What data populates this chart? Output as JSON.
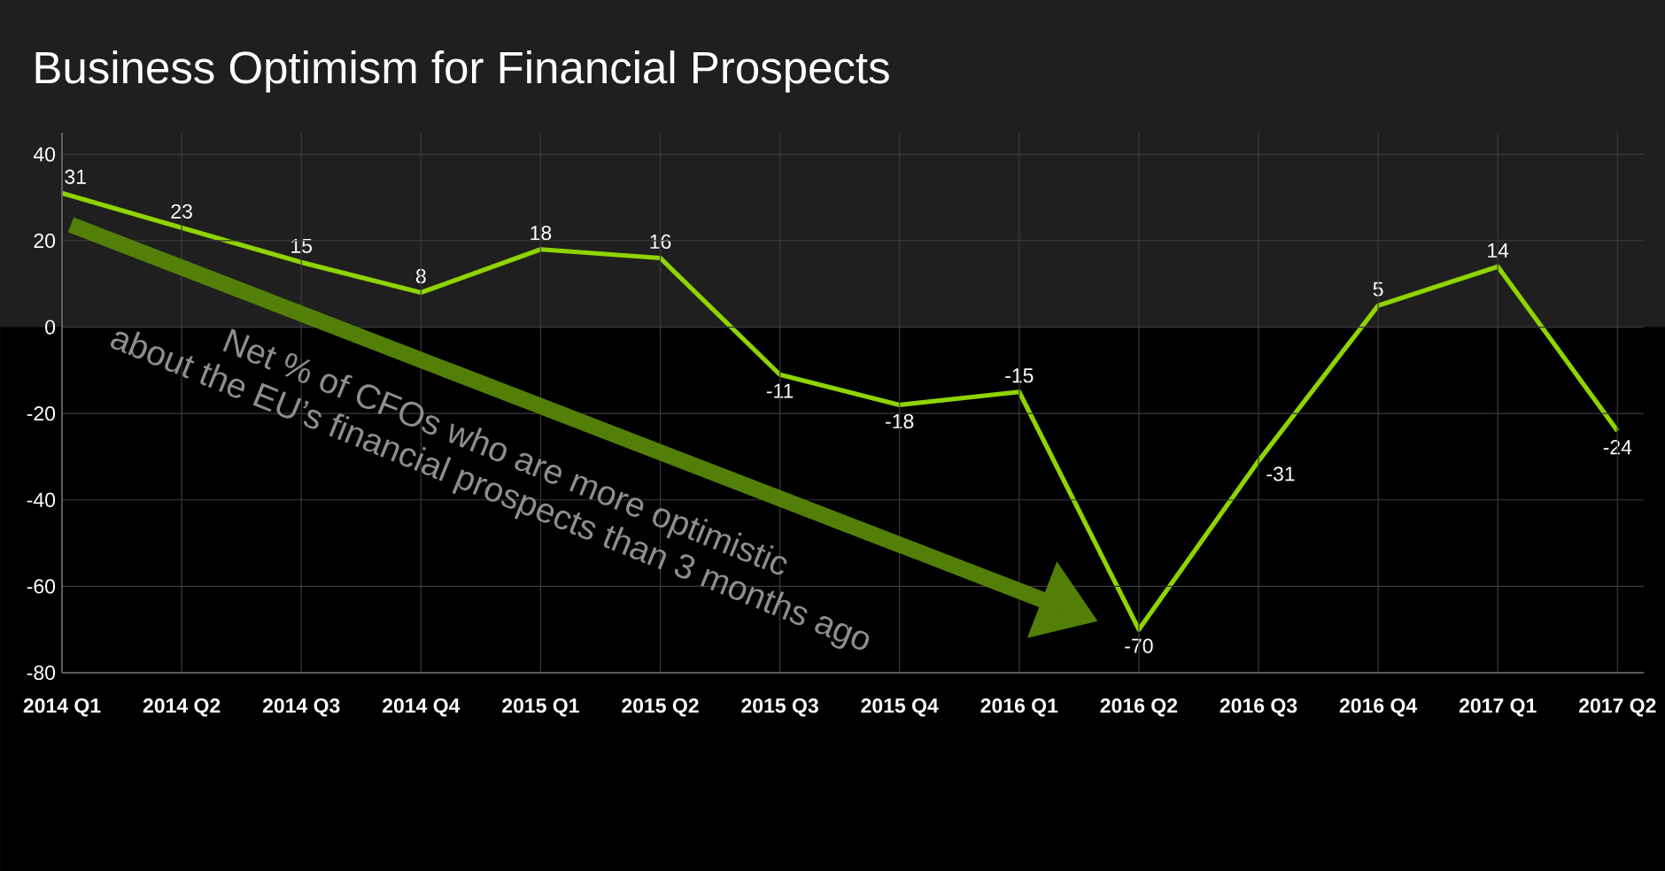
{
  "chart_data": {
    "type": "line",
    "title": "Business Optimism for Financial Prospects",
    "categories": [
      "2014 Q1",
      "2014 Q2",
      "2014 Q3",
      "2014 Q4",
      "2015 Q1",
      "2015 Q2",
      "2015 Q3",
      "2015 Q4",
      "2016 Q1",
      "2016 Q2",
      "2016 Q3",
      "2016 Q4",
      "2017 Q1",
      "2017 Q2"
    ],
    "values": [
      31,
      23,
      15,
      8,
      18,
      16,
      -11,
      -18,
      -15,
      -70,
      -31,
      5,
      14,
      -24
    ],
    "color": "#8fd400",
    "ylim": [
      -80,
      45
    ],
    "yticks": [
      -80,
      -60,
      -40,
      -20,
      0,
      20,
      40
    ],
    "grid": true,
    "data_labels": true,
    "marker": "none",
    "line_style": "solid",
    "bands": [
      {
        "axis": "y",
        "from": 0,
        "to": 45,
        "color": "#1f1f1f"
      }
    ],
    "annotations": [
      "Net % of CFOs who are more optimistic",
      "about the EU’s financial prospects than 3 months ago"
    ]
  }
}
